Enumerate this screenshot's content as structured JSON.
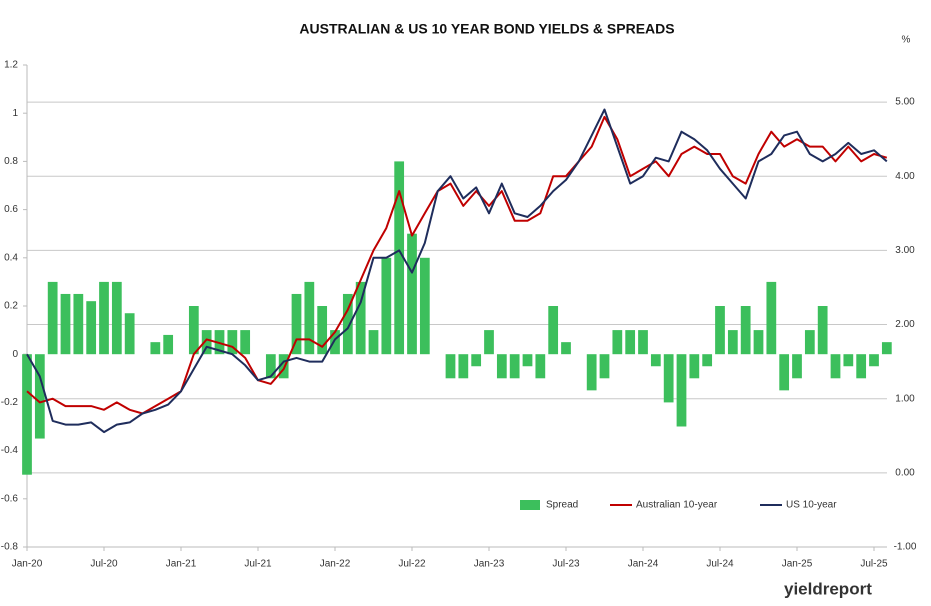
{
  "chart_data": {
    "type": "bar-line",
    "title": "AUSTRALIAN & US 10 YEAR BOND YIELDS & SPREADS",
    "y2_unit": "%",
    "brand": "yieldreport",
    "categories": [
      "Jan-20",
      null,
      null,
      null,
      null,
      null,
      "Jul-20",
      null,
      null,
      null,
      null,
      null,
      "Jan-21",
      null,
      null,
      null,
      null,
      null,
      "Jul-21",
      null,
      null,
      null,
      null,
      null,
      "Jan-22",
      null,
      null,
      null,
      null,
      null,
      "Jul-22",
      null,
      null,
      null,
      null,
      null,
      "Jan-23",
      null,
      null,
      null,
      null,
      null,
      "Jul-23",
      null,
      null,
      null,
      null,
      null,
      "Jan-24",
      null,
      null,
      null,
      null,
      null,
      "Jul-24",
      null,
      null,
      null,
      null,
      null,
      "Jan-25",
      null,
      null,
      null,
      null,
      null,
      "Jul-25",
      null
    ],
    "series": [
      {
        "name": "Spread",
        "type": "bar",
        "axis": "y",
        "color": "#3cbf5c",
        "values": [
          -0.5,
          -0.35,
          0.3,
          0.25,
          0.25,
          0.22,
          0.3,
          0.3,
          0.17,
          0,
          0.05,
          0.08,
          0,
          0.2,
          0.1,
          0.1,
          0.1,
          0.1,
          0,
          -0.1,
          -0.1,
          0.25,
          0.3,
          0.2,
          0.1,
          0.25,
          0.3,
          0.1,
          0.4,
          0.8,
          0.5,
          0.4,
          0,
          -0.1,
          -0.1,
          -0.05,
          0.1,
          -0.1,
          -0.1,
          -0.05,
          -0.1,
          0.2,
          0.05,
          0,
          -0.15,
          -0.1,
          0.1,
          0.1,
          0.1,
          -0.05,
          -0.2,
          -0.3,
          -0.1,
          -0.05,
          0.2,
          0.1,
          0.2,
          0.1,
          0.3,
          -0.15,
          -0.1,
          0.1,
          0.2,
          -0.1,
          -0.05,
          -0.1,
          -0.05,
          0.05
        ]
      },
      {
        "name": "Australian 10-year",
        "type": "line",
        "axis": "y2",
        "color": "#c00000",
        "values": [
          1.1,
          0.95,
          1.0,
          0.9,
          0.9,
          0.9,
          0.85,
          0.95,
          0.85,
          0.8,
          0.9,
          1.0,
          1.1,
          1.6,
          1.8,
          1.75,
          1.7,
          1.55,
          1.25,
          1.2,
          1.4,
          1.8,
          1.8,
          1.7,
          1.9,
          2.2,
          2.6,
          3.0,
          3.3,
          3.8,
          3.2,
          3.5,
          3.8,
          3.9,
          3.6,
          3.8,
          3.6,
          3.8,
          3.4,
          3.4,
          3.5,
          4.0,
          4.0,
          4.2,
          4.4,
          4.8,
          4.5,
          4.0,
          4.1,
          4.2,
          4.0,
          4.3,
          4.4,
          4.3,
          4.3,
          4.0,
          3.9,
          4.3,
          4.6,
          4.4,
          4.5,
          4.4,
          4.4,
          4.2,
          4.4,
          4.2,
          4.3,
          4.25
        ]
      },
      {
        "name": "US 10-year",
        "type": "line",
        "axis": "y2",
        "color": "#1f2d5c",
        "values": [
          1.6,
          1.3,
          0.7,
          0.65,
          0.65,
          0.68,
          0.55,
          0.65,
          0.68,
          0.8,
          0.85,
          0.92,
          1.1,
          1.4,
          1.7,
          1.65,
          1.6,
          1.45,
          1.25,
          1.3,
          1.5,
          1.55,
          1.5,
          1.5,
          1.8,
          1.95,
          2.3,
          2.9,
          2.9,
          3.0,
          2.7,
          3.1,
          3.8,
          4.0,
          3.7,
          3.85,
          3.5,
          3.9,
          3.5,
          3.45,
          3.6,
          3.8,
          3.95,
          4.2,
          4.55,
          4.9,
          4.4,
          3.9,
          4.0,
          4.25,
          4.2,
          4.6,
          4.5,
          4.35,
          4.1,
          3.9,
          3.7,
          4.2,
          4.3,
          4.55,
          4.6,
          4.3,
          4.2,
          4.3,
          4.45,
          4.3,
          4.35,
          4.2
        ]
      }
    ],
    "ylim": [
      -0.8,
      1.2
    ],
    "yticks": [
      1.2,
      1,
      0.8,
      0.6,
      0.4,
      0.2,
      0,
      -0.2,
      -0.4,
      -0.6,
      -0.8
    ],
    "y2lim": [
      -1,
      5.5
    ],
    "y2ticks": [
      {
        "value": 5,
        "label": "5.00"
      },
      {
        "value": 4,
        "label": "4.00"
      },
      {
        "value": 3,
        "label": "3.00"
      },
      {
        "value": 2,
        "label": "2.00"
      },
      {
        "value": 1,
        "label": "1.00"
      },
      {
        "value": 0,
        "label": "0.00"
      },
      {
        "value": -1,
        "label": "-1.00"
      }
    ],
    "grid": true,
    "legend": "bottom-right"
  }
}
